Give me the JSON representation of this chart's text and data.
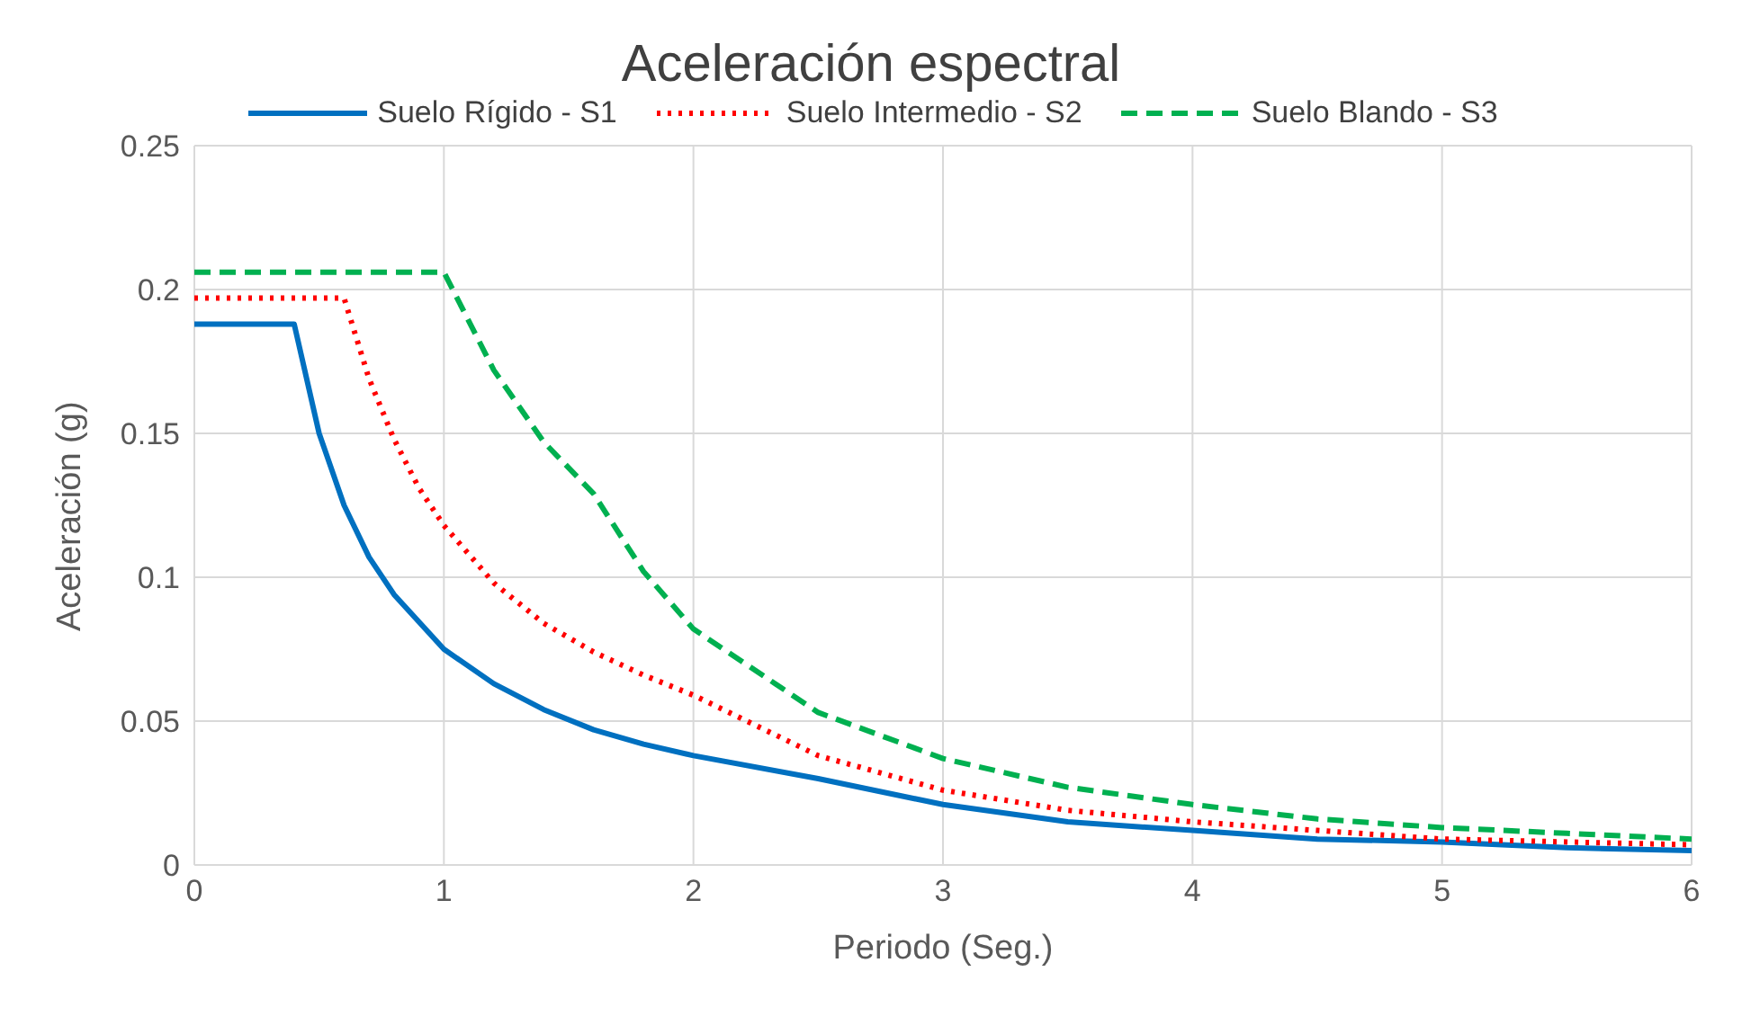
{
  "chart_data": {
    "type": "line",
    "title": "Aceleración espectral",
    "xlabel": "Periodo (Seg.)",
    "ylabel": "Aceleración (g)",
    "xlim": [
      0,
      6
    ],
    "xticks": [
      0,
      1,
      2,
      3,
      4,
      5,
      6
    ],
    "ylim": [
      0,
      0.25
    ],
    "yticks": [
      0,
      0.05,
      0.1,
      0.15,
      0.2,
      0.25
    ],
    "grid": true,
    "legend": "top",
    "marker": "none",
    "series": [
      {
        "name": "Suelo Rígido - S1",
        "color": "#0070c0",
        "line_style": "solid",
        "x": [
          0,
          0.4,
          0.5,
          0.6,
          0.7,
          0.8,
          1,
          1.2,
          1.4,
          1.6,
          1.8,
          2,
          2.5,
          3,
          3.5,
          4,
          4.5,
          5,
          5.5,
          6
        ],
        "values": [
          0.188,
          0.188,
          0.15,
          0.125,
          0.107,
          0.094,
          0.075,
          0.063,
          0.054,
          0.047,
          0.042,
          0.038,
          0.03,
          0.021,
          0.015,
          0.012,
          0.009,
          0.008,
          0.006,
          0.005
        ]
      },
      {
        "name": "Suelo Intermedio - S2",
        "color": "#ff0000",
        "line_style": "dotted",
        "x": [
          0,
          0.6,
          0.7,
          0.8,
          0.9,
          1,
          1.2,
          1.4,
          1.6,
          1.8,
          2,
          2.5,
          3,
          3.5,
          4,
          4.5,
          5,
          5.5,
          6
        ],
        "values": [
          0.197,
          0.197,
          0.169,
          0.148,
          0.131,
          0.118,
          0.098,
          0.084,
          0.074,
          0.066,
          0.059,
          0.038,
          0.026,
          0.019,
          0.015,
          0.012,
          0.009,
          0.008,
          0.007
        ]
      },
      {
        "name": "Suelo Blando - S3",
        "color": "#00b050",
        "line_style": "dashed",
        "x": [
          0,
          1,
          1.2,
          1.4,
          1.6,
          1.8,
          2,
          2.5,
          3,
          3.5,
          4,
          4.5,
          5,
          5.5,
          6
        ],
        "values": [
          0.206,
          0.206,
          0.172,
          0.147,
          0.129,
          0.102,
          0.082,
          0.053,
          0.037,
          0.027,
          0.021,
          0.016,
          0.013,
          0.011,
          0.009
        ]
      }
    ]
  }
}
